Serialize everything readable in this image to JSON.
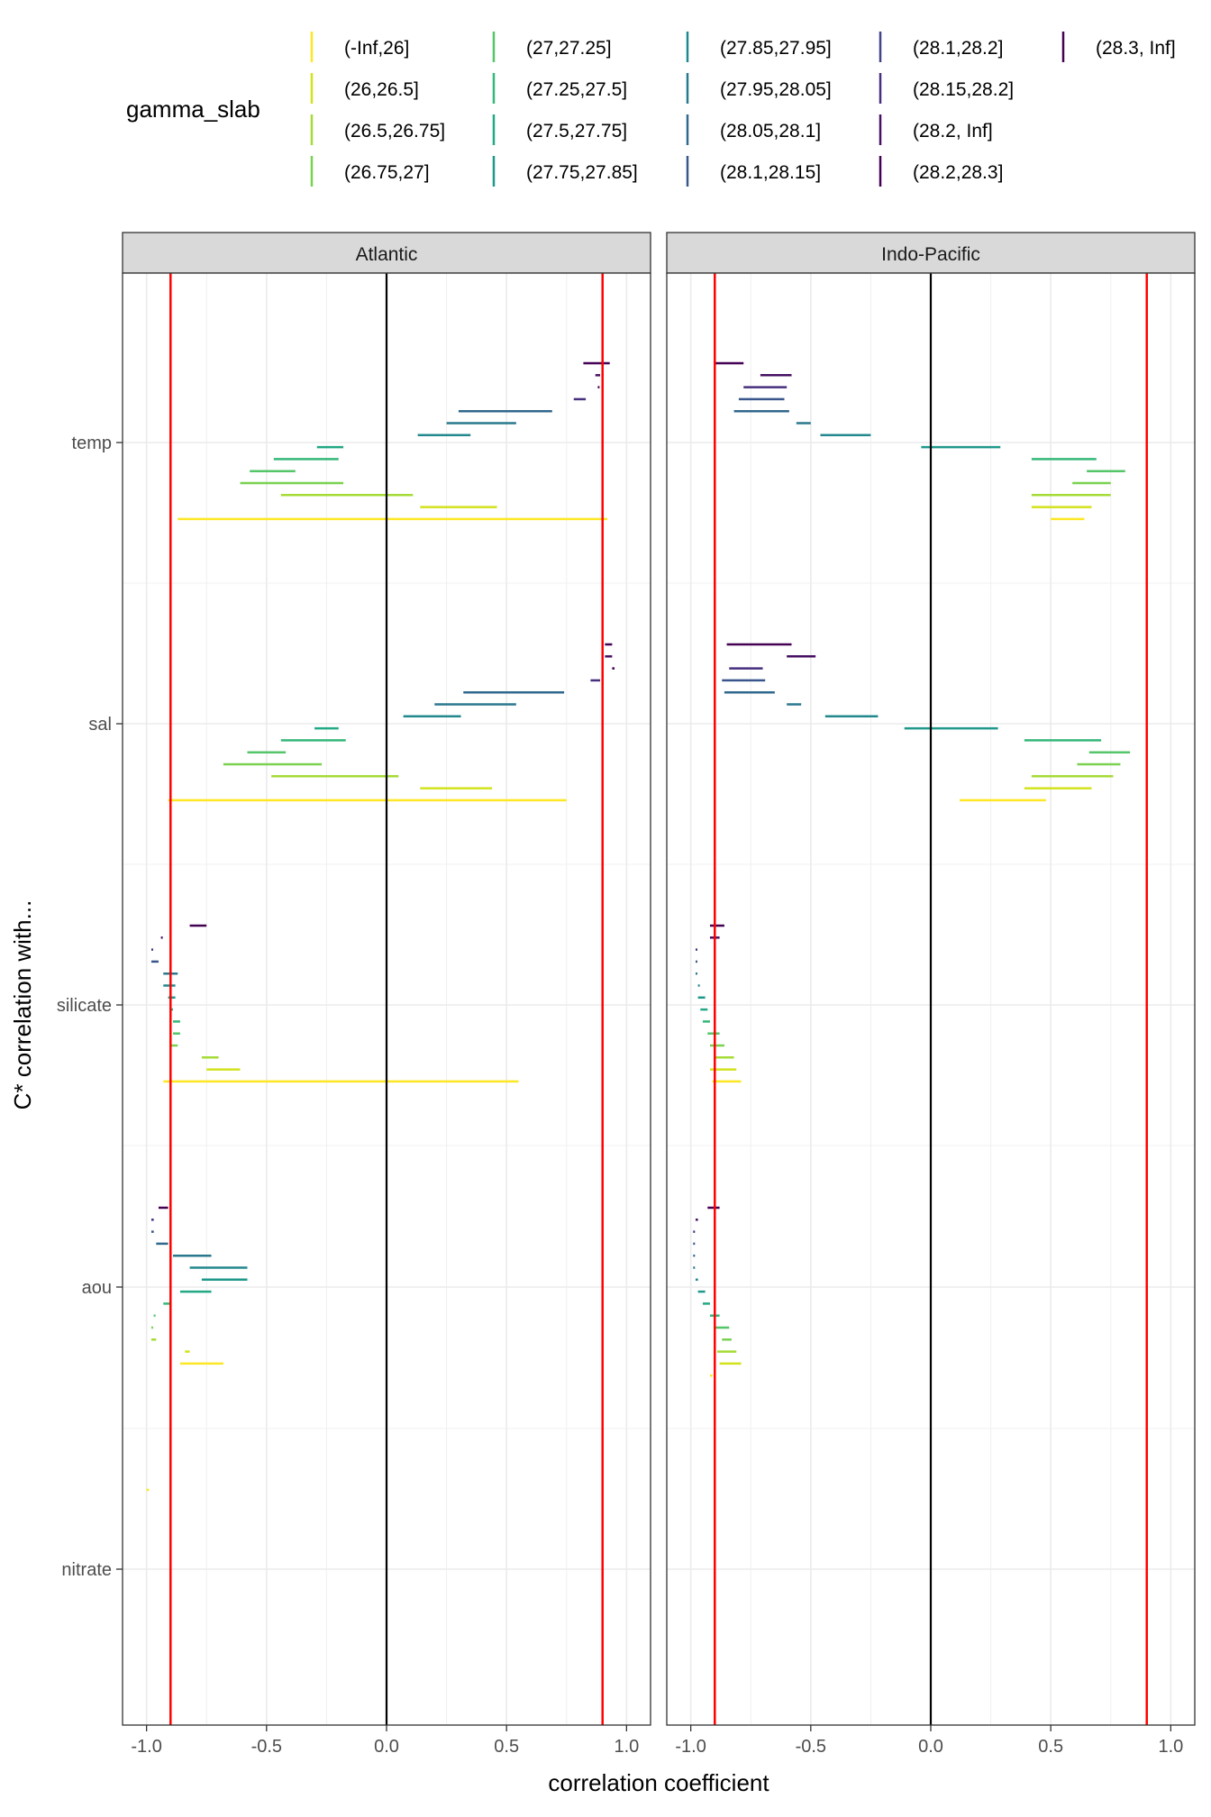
{
  "chart_data": {
    "type": "range",
    "ylabel": "C* correlation with...",
    "xlabel": "correlation coefficient",
    "xlim": [
      -1.1,
      1.1
    ],
    "x_ticks": [
      -1.0,
      -0.5,
      0.0,
      0.5,
      1.0
    ],
    "x_tick_labels": [
      "-1.0",
      "-0.5",
      "0.0",
      "0.5",
      "1.0"
    ],
    "threshold_lines": [
      -0.9,
      0.9
    ],
    "zero_line": 0.0,
    "variables": [
      "temp",
      "sal",
      "silicate",
      "aou",
      "nitrate"
    ],
    "legend": {
      "title": "gamma_slab",
      "entries": [
        {
          "label": "(-Inf,26]",
          "color": "#fde725"
        },
        {
          "label": "(26,26.5]",
          "color": "#d2e21b"
        },
        {
          "label": "(26.5,26.75]",
          "color": "#a5db36"
        },
        {
          "label": "(26.75,27]",
          "color": "#7ad151"
        },
        {
          "label": "(27,27.25]",
          "color": "#54c568"
        },
        {
          "label": "(27.25,27.5]",
          "color": "#35b779"
        },
        {
          "label": "(27.5,27.75]",
          "color": "#22a884"
        },
        {
          "label": "(27.75,27.85]",
          "color": "#1f988b"
        },
        {
          "label": "(27.85,27.95]",
          "color": "#23888e"
        },
        {
          "label": "(27.95,28.05]",
          "color": "#2a788e"
        },
        {
          "label": "(28.05,28.1]",
          "color": "#31688e"
        },
        {
          "label": "(28.1,28.15]",
          "color": "#39568c"
        },
        {
          "label": "(28.1,28.2]",
          "color": "#414487"
        },
        {
          "label": "(28.15,28.2]",
          "color": "#472f7d"
        },
        {
          "label": "(28.2, Inf]",
          "color": "#471063"
        },
        {
          "label": "(28.2,28.3]",
          "color": "#440154"
        },
        {
          "label": "(28.3, Inf]",
          "color": "#440154"
        }
      ]
    },
    "facets": [
      {
        "name": "Atlantic",
        "series": {
          "temp": [
            {
              "slab": "(28.3, Inf]",
              "min": 0.82,
              "max": 0.93
            },
            {
              "slab": "(28.2, Inf]",
              "min": 0.87,
              "max": 0.89
            },
            {
              "slab": "(28.2,28.3]",
              "min": 0.88,
              "max": 0.88
            },
            {
              "slab": "(28.15,28.2]",
              "min": 0.78,
              "max": 0.83
            },
            {
              "slab": "(28.05,28.1]",
              "min": 0.3,
              "max": 0.69
            },
            {
              "slab": "(27.95,28.05]",
              "min": 0.25,
              "max": 0.54
            },
            {
              "slab": "(27.85,27.95]",
              "min": 0.13,
              "max": 0.35
            },
            {
              "slab": "(27.5,27.75]",
              "min": -0.29,
              "max": -0.18
            },
            {
              "slab": "(27.25,27.5]",
              "min": -0.47,
              "max": -0.2
            },
            {
              "slab": "(27,27.25]",
              "min": -0.57,
              "max": -0.38
            },
            {
              "slab": "(26.75,27]",
              "min": -0.61,
              "max": -0.18
            },
            {
              "slab": "(26.5,26.75]",
              "min": -0.44,
              "max": 0.11
            },
            {
              "slab": "(26,26.5]",
              "min": 0.14,
              "max": 0.46
            },
            {
              "slab": "(-Inf,26]",
              "min": -0.87,
              "max": 0.92
            }
          ],
          "sal": [
            {
              "slab": "(28.3, Inf]",
              "min": 0.91,
              "max": 0.94
            },
            {
              "slab": "(28.2, Inf]",
              "min": 0.91,
              "max": 0.94
            },
            {
              "slab": "(28.2,28.3]",
              "min": 0.94,
              "max": 0.95
            },
            {
              "slab": "(28.15,28.2]",
              "min": 0.85,
              "max": 0.89
            },
            {
              "slab": "(28.05,28.1]",
              "min": 0.32,
              "max": 0.74
            },
            {
              "slab": "(27.95,28.05]",
              "min": 0.2,
              "max": 0.54
            },
            {
              "slab": "(27.85,27.95]",
              "min": 0.07,
              "max": 0.31
            },
            {
              "slab": "(27.5,27.75]",
              "min": -0.3,
              "max": -0.2
            },
            {
              "slab": "(27.25,27.5]",
              "min": -0.44,
              "max": -0.17
            },
            {
              "slab": "(27,27.25]",
              "min": -0.58,
              "max": -0.42
            },
            {
              "slab": "(26.75,27]",
              "min": -0.68,
              "max": -0.27
            },
            {
              "slab": "(26.5,26.75]",
              "min": -0.48,
              "max": 0.05
            },
            {
              "slab": "(26,26.5]",
              "min": 0.14,
              "max": 0.44
            },
            {
              "slab": "(-Inf,26]",
              "min": -0.91,
              "max": 0.75
            }
          ],
          "silicate": [
            {
              "slab": "(28.3, Inf]",
              "min": -0.82,
              "max": -0.75
            },
            {
              "slab": "(28.2, Inf]",
              "min": -0.94,
              "max": -0.94
            },
            {
              "slab": "(28.15,28.2]",
              "min": -0.98,
              "max": -0.98
            },
            {
              "slab": "(28.1,28.15]",
              "min": -0.98,
              "max": -0.95
            },
            {
              "slab": "(27.95,28.05]",
              "min": -0.93,
              "max": -0.87
            },
            {
              "slab": "(27.85,27.95]",
              "min": -0.93,
              "max": -0.88
            },
            {
              "slab": "(27.75,27.85]",
              "min": -0.91,
              "max": -0.88
            },
            {
              "slab": "(27.5,27.75]",
              "min": -0.9,
              "max": -0.89
            },
            {
              "slab": "(27.25,27.5]",
              "min": -0.89,
              "max": -0.86
            },
            {
              "slab": "(27,27.25]",
              "min": -0.89,
              "max": -0.86
            },
            {
              "slab": "(26.75,27]",
              "min": -0.9,
              "max": -0.87
            },
            {
              "slab": "(26.5,26.75]",
              "min": -0.77,
              "max": -0.7
            },
            {
              "slab": "(26,26.5]",
              "min": -0.75,
              "max": -0.61
            },
            {
              "slab": "(-Inf,26]",
              "min": -0.93,
              "max": 0.55
            }
          ],
          "aou": [
            {
              "slab": "(28.3, Inf]",
              "min": -0.95,
              "max": -0.91
            },
            {
              "slab": "(28.15,28.2]",
              "min": -0.98,
              "max": -0.97
            },
            {
              "slab": "(28.1,28.15]",
              "min": -0.98,
              "max": -0.97
            },
            {
              "slab": "(28.05,28.1]",
              "min": -0.96,
              "max": -0.91
            },
            {
              "slab": "(27.95,28.05]",
              "min": -0.89,
              "max": -0.73
            },
            {
              "slab": "(27.85,27.95]",
              "min": -0.82,
              "max": -0.58
            },
            {
              "slab": "(27.75,27.85]",
              "min": -0.77,
              "max": -0.58
            },
            {
              "slab": "(27.5,27.75]",
              "min": -0.86,
              "max": -0.73
            },
            {
              "slab": "(27.25,27.5]",
              "min": -0.93,
              "max": -0.9
            },
            {
              "slab": "(27,27.25]",
              "min": -0.97,
              "max": -0.97
            },
            {
              "slab": "(26.75,27]",
              "min": -0.98,
              "max": -0.98
            },
            {
              "slab": "(26.5,26.75]",
              "min": -0.98,
              "max": -0.96
            },
            {
              "slab": "(26,26.5]",
              "min": -0.84,
              "max": -0.82
            },
            {
              "slab": "(-Inf,26]",
              "min": -0.86,
              "max": -0.68
            }
          ],
          "nitrate": [
            {
              "slab": "(-Inf,26]",
              "min": -1.0,
              "max": -0.99
            }
          ]
        }
      },
      {
        "name": "Indo-Pacific",
        "series": {
          "temp": [
            {
              "slab": "(28.3, Inf]",
              "min": -0.9,
              "max": -0.78
            },
            {
              "slab": "(28.2, Inf]",
              "min": -0.71,
              "max": -0.58
            },
            {
              "slab": "(28.15,28.2]",
              "min": -0.78,
              "max": -0.6
            },
            {
              "slab": "(28.1,28.15]",
              "min": -0.8,
              "max": -0.61
            },
            {
              "slab": "(28.05,28.1]",
              "min": -0.82,
              "max": -0.59
            },
            {
              "slab": "(27.95,28.05]",
              "min": -0.56,
              "max": -0.5
            },
            {
              "slab": "(27.85,27.95]",
              "min": -0.46,
              "max": -0.25
            },
            {
              "slab": "(27.75,27.85]",
              "min": -0.04,
              "max": 0.29
            },
            {
              "slab": "(27.25,27.5]",
              "min": 0.42,
              "max": 0.69
            },
            {
              "slab": "(27,27.25]",
              "min": 0.65,
              "max": 0.81
            },
            {
              "slab": "(26.75,27]",
              "min": 0.59,
              "max": 0.75
            },
            {
              "slab": "(26.5,26.75]",
              "min": 0.42,
              "max": 0.75
            },
            {
              "slab": "(26,26.5]",
              "min": 0.42,
              "max": 0.67
            },
            {
              "slab": "(-Inf,26]",
              "min": 0.5,
              "max": 0.64
            }
          ],
          "sal": [
            {
              "slab": "(28.3, Inf]",
              "min": -0.85,
              "max": -0.58
            },
            {
              "slab": "(28.2, Inf]",
              "min": -0.6,
              "max": -0.48
            },
            {
              "slab": "(28.15,28.2]",
              "min": -0.84,
              "max": -0.7
            },
            {
              "slab": "(28.1,28.15]",
              "min": -0.87,
              "max": -0.69
            },
            {
              "slab": "(28.05,28.1]",
              "min": -0.86,
              "max": -0.65
            },
            {
              "slab": "(27.95,28.05]",
              "min": -0.6,
              "max": -0.54
            },
            {
              "slab": "(27.85,27.95]",
              "min": -0.44,
              "max": -0.22
            },
            {
              "slab": "(27.75,27.85]",
              "min": -0.11,
              "max": 0.28
            },
            {
              "slab": "(27.25,27.5]",
              "min": 0.39,
              "max": 0.71
            },
            {
              "slab": "(27,27.25]",
              "min": 0.66,
              "max": 0.83
            },
            {
              "slab": "(26.75,27]",
              "min": 0.61,
              "max": 0.79
            },
            {
              "slab": "(26.5,26.75]",
              "min": 0.42,
              "max": 0.76
            },
            {
              "slab": "(26,26.5]",
              "min": 0.39,
              "max": 0.67
            },
            {
              "slab": "(-Inf,26]",
              "min": 0.12,
              "max": 0.48
            }
          ],
          "silicate": [
            {
              "slab": "(28.3, Inf]",
              "min": -0.92,
              "max": -0.86
            },
            {
              "slab": "(28.2, Inf]",
              "min": -0.92,
              "max": -0.88
            },
            {
              "slab": "(28.15,28.2]",
              "min": -0.98,
              "max": -0.98
            },
            {
              "slab": "(28.1,28.15]",
              "min": -0.98,
              "max": -0.98
            },
            {
              "slab": "(27.95,28.05]",
              "min": -0.98,
              "max": -0.98
            },
            {
              "slab": "(27.85,27.95]",
              "min": -0.97,
              "max": -0.97
            },
            {
              "slab": "(27.75,27.85]",
              "min": -0.97,
              "max": -0.94
            },
            {
              "slab": "(27.5,27.75]",
              "min": -0.96,
              "max": -0.93
            },
            {
              "slab": "(27.25,27.5]",
              "min": -0.95,
              "max": -0.92
            },
            {
              "slab": "(27,27.25]",
              "min": -0.93,
              "max": -0.88
            },
            {
              "slab": "(26.75,27]",
              "min": -0.92,
              "max": -0.86
            },
            {
              "slab": "(26.5,26.75]",
              "min": -0.9,
              "max": -0.82
            },
            {
              "slab": "(26,26.5]",
              "min": -0.92,
              "max": -0.81
            },
            {
              "slab": "(-Inf,26]",
              "min": -0.91,
              "max": -0.79
            }
          ],
          "aou": [
            {
              "slab": "(28.3, Inf]",
              "min": -0.93,
              "max": -0.88
            },
            {
              "slab": "(28.2, Inf]",
              "min": -0.98,
              "max": -0.97
            },
            {
              "slab": "(28.15,28.2]",
              "min": -0.99,
              "max": -0.99
            },
            {
              "slab": "(28.1,28.15]",
              "min": -0.99,
              "max": -0.99
            },
            {
              "slab": "(28.05,28.1]",
              "min": -0.99,
              "max": -0.99
            },
            {
              "slab": "(27.95,28.05]",
              "min": -0.99,
              "max": -0.99
            },
            {
              "slab": "(27.85,27.95]",
              "min": -0.98,
              "max": -0.97
            },
            {
              "slab": "(27.75,27.85]",
              "min": -0.97,
              "max": -0.94
            },
            {
              "slab": "(27.5,27.75]",
              "min": -0.95,
              "max": -0.92
            },
            {
              "slab": "(27.25,27.5]",
              "min": -0.92,
              "max": -0.88
            },
            {
              "slab": "(27,27.25]",
              "min": -0.9,
              "max": -0.84
            },
            {
              "slab": "(26.75,27]",
              "min": -0.87,
              "max": -0.83
            },
            {
              "slab": "(26.5,26.75]",
              "min": -0.89,
              "max": -0.81
            },
            {
              "slab": "(26,26.5]",
              "min": -0.88,
              "max": -0.79
            },
            {
              "slab": "(-Inf,26]",
              "min": -0.92,
              "max": -0.91
            }
          ],
          "nitrate": []
        }
      }
    ]
  }
}
